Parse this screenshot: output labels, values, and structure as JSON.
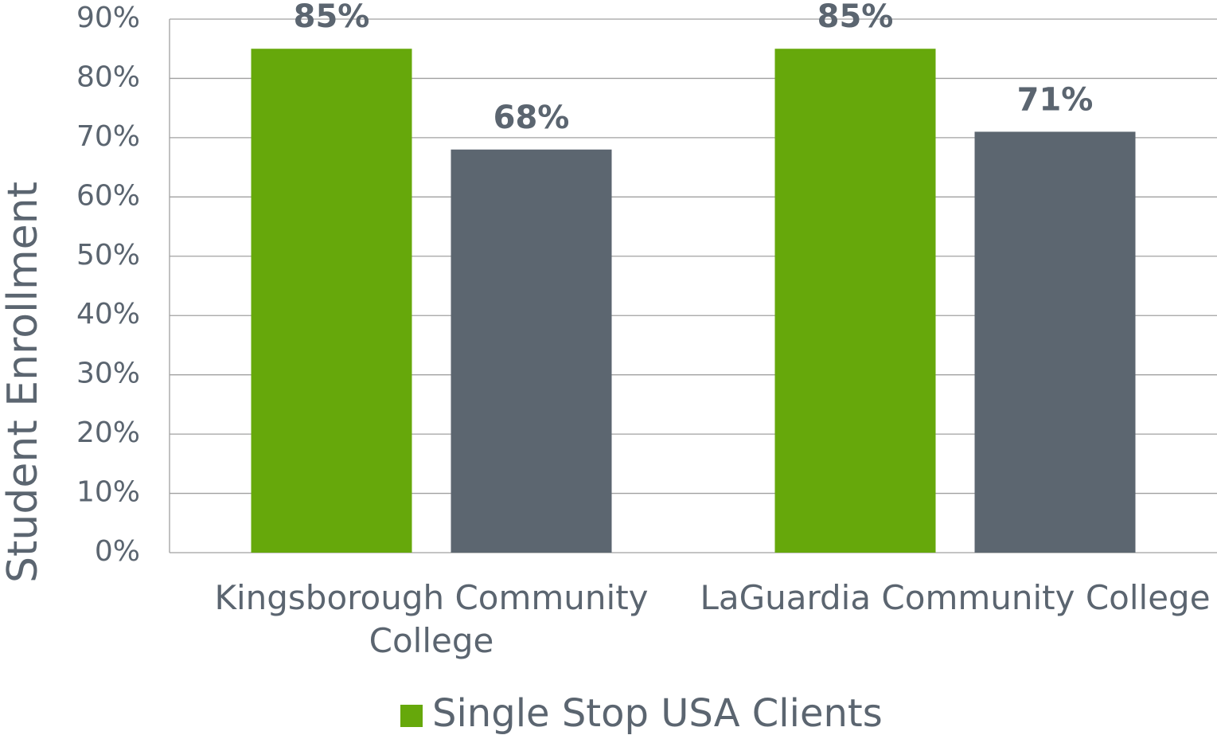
{
  "chart_data": {
    "type": "bar",
    "y_label": "Student Enrollment",
    "categories": [
      "Kingsborough Community College",
      "LaGuardia Community College"
    ],
    "series": [
      {
        "name": "Single Stop USA Clients",
        "color": "#66a80b",
        "values": [
          85,
          85
        ],
        "value_labels": [
          "85%",
          "85%"
        ]
      },
      {
        "name": null,
        "color": "#5c6670",
        "values": [
          68,
          71
        ],
        "value_labels": [
          "68%",
          "71%"
        ]
      }
    ],
    "ylim": [
      0,
      90
    ],
    "yticks": [
      {
        "value": 0,
        "label": "0%"
      },
      {
        "value": 10,
        "label": "10%"
      },
      {
        "value": 20,
        "label": "20%"
      },
      {
        "value": 30,
        "label": "30%"
      },
      {
        "value": 40,
        "label": "40%"
      },
      {
        "value": 50,
        "label": "50%"
      },
      {
        "value": 60,
        "label": "60%"
      },
      {
        "value": 70,
        "label": "70%"
      },
      {
        "value": 80,
        "label": "80%"
      },
      {
        "value": 90,
        "label": "90%"
      }
    ],
    "grid": true
  }
}
